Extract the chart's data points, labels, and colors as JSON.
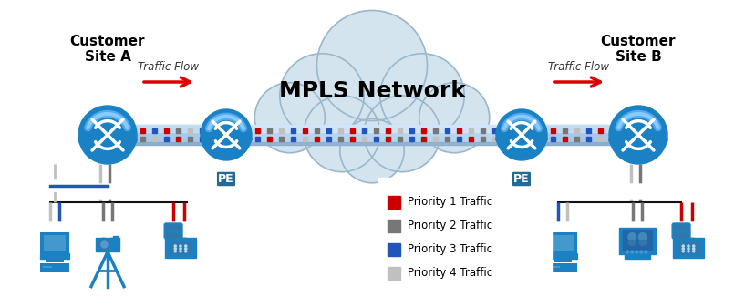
{
  "title": "MPLS Network",
  "title_fontsize": 18,
  "bg_color": "#ffffff",
  "cloud_color": "#d4e4ef",
  "cloud_edge_color": "#9ab8cc",
  "priority_colors": {
    "p1": "#cc0000",
    "p2": "#777777",
    "p3": "#2255bb",
    "p4": "#c0c0c0"
  },
  "legend_items": [
    {
      "label": "Priority 1 Traffic",
      "color": "#cc0000"
    },
    {
      "label": "Priority 2 Traffic",
      "color": "#777777"
    },
    {
      "label": "Priority 3 Traffic",
      "color": "#2255bb"
    },
    {
      "label": "Priority 4 Traffic",
      "color": "#c0c0c0"
    }
  ],
  "arrow_color": "#dd0000",
  "text_color": "#000000",
  "router_color": "#1a82c4",
  "router_dark": "#0d5a8a",
  "router_light": "#55aaee",
  "figsize": [
    8.17,
    3.37
  ],
  "dpi": 100
}
